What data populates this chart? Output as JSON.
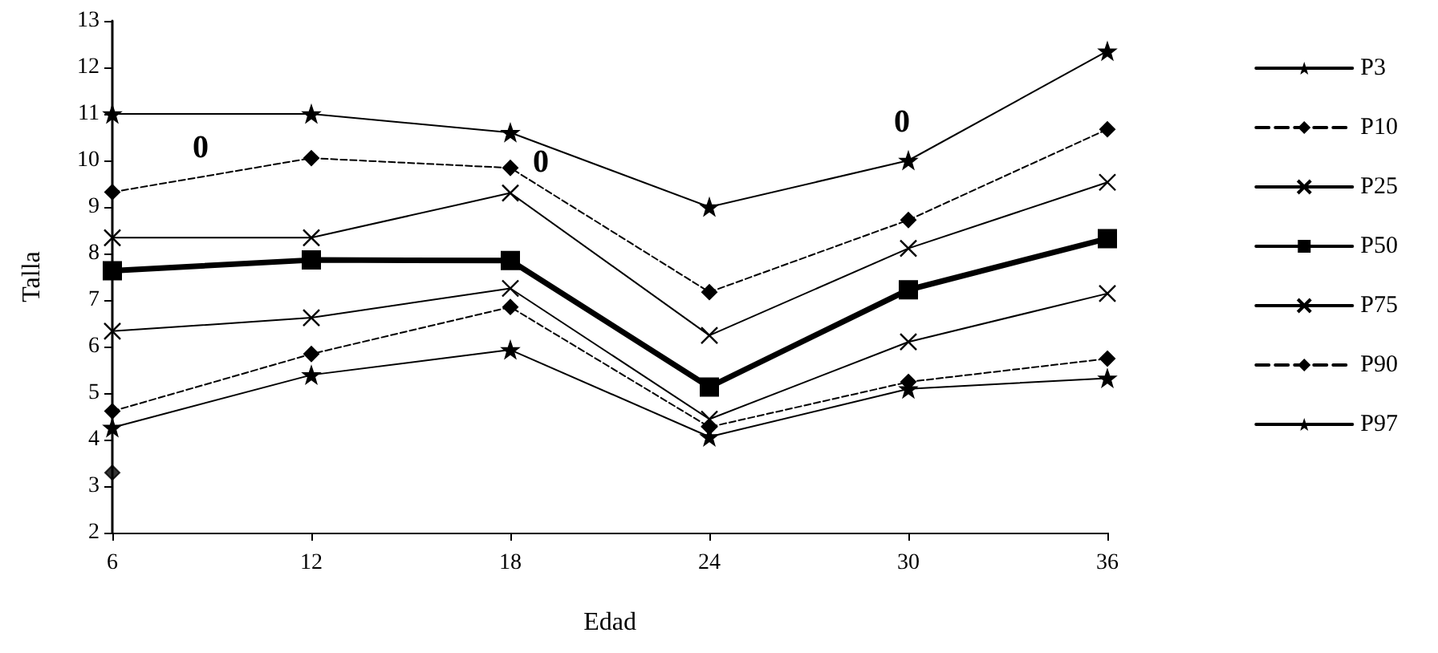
{
  "chart_data": {
    "type": "line",
    "xlabel": "Edad",
    "ylabel": "Talla",
    "categories": [
      "6",
      "12",
      "18",
      "24",
      "30",
      "36"
    ],
    "ylim": [
      2,
      13
    ],
    "yticks": [
      2,
      3,
      4,
      5,
      6,
      7,
      8,
      9,
      10,
      11,
      12,
      13
    ],
    "grid": false,
    "legend": "right",
    "series": [
      {
        "name": "P3",
        "color": "#000000",
        "marker": "star",
        "line_style": "solid",
        "values": [
          4.26,
          5.39,
          5.93,
          4.06,
          5.09,
          5.32
        ]
      },
      {
        "name": "P10",
        "color": "#000000",
        "marker": "diamond",
        "line_style": "dashed",
        "values": [
          4.61,
          5.84,
          6.85,
          4.27,
          5.24,
          5.74
        ]
      },
      {
        "name": "P25",
        "color": "#000000",
        "marker": "cross",
        "line_style": "solid",
        "values": [
          6.33,
          6.62,
          7.25,
          4.44,
          6.1,
          7.14
        ]
      },
      {
        "name": "P50",
        "color": "#000000",
        "marker": "square",
        "line_style": "solid",
        "values": [
          7.63,
          7.86,
          7.85,
          5.13,
          7.22,
          8.32
        ]
      },
      {
        "name": "P75",
        "color": "#000000",
        "marker": "cross",
        "line_style": "solid",
        "values": [
          8.34,
          8.34,
          9.3,
          6.24,
          8.11,
          9.53
        ]
      },
      {
        "name": "P90",
        "color": "#000000",
        "marker": "diamond",
        "line_style": "dashed",
        "values": [
          9.32,
          10.05,
          9.84,
          7.17,
          8.72,
          10.67
        ]
      },
      {
        "name": "P97",
        "color": "#000000",
        "marker": "star",
        "line_style": "solid",
        "values": [
          11.0,
          11.0,
          10.6,
          9.0,
          10.0,
          12.35
        ]
      },
      {
        "type": "scatter",
        "color": "#000000",
        "marker": "diamond",
        "x": [
          "6"
        ],
        "values": [
          3.29
        ]
      }
    ],
    "annotations": [
      "0",
      "0",
      "0"
    ]
  }
}
